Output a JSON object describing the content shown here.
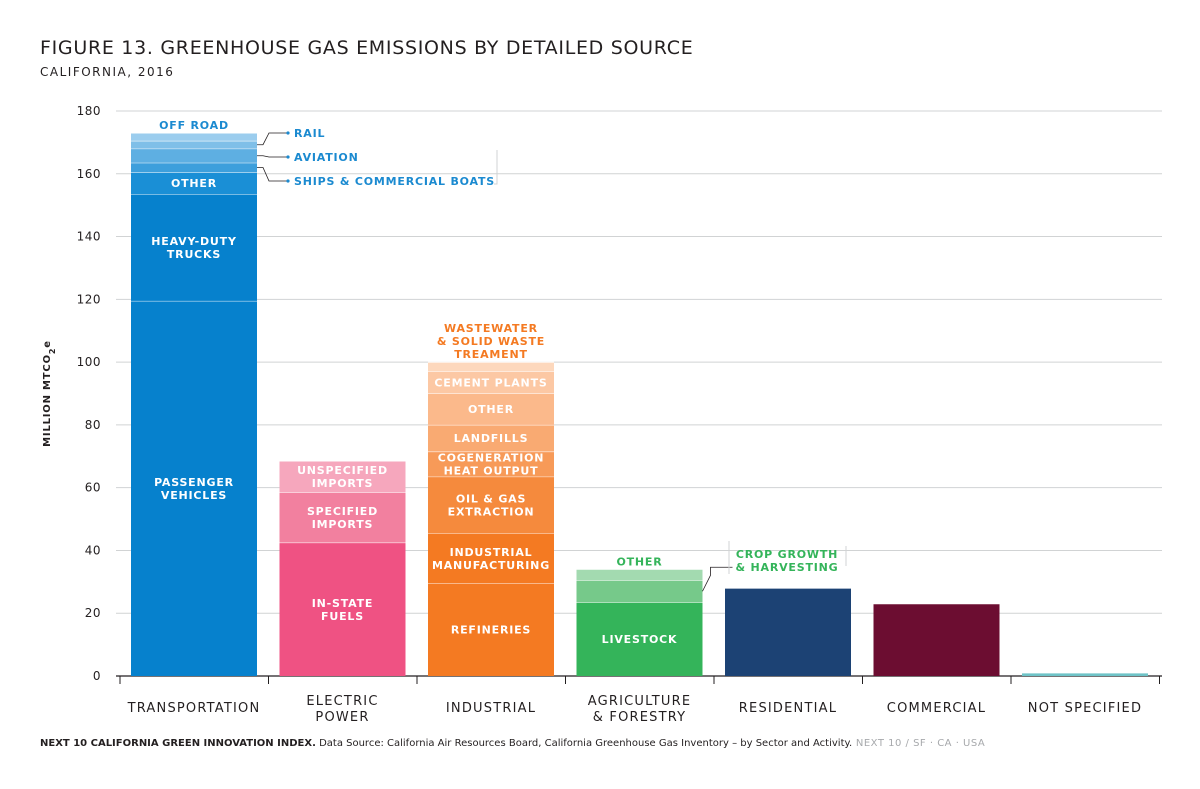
{
  "header": {
    "title": "FIGURE 13. GREENHOUSE GAS EMISSIONS BY DETAILED SOURCE",
    "subtitle": "CALIFORNIA, 2016"
  },
  "footer": {
    "bold": "NEXT 10 CALIFORNIA GREEN INNOVATION INDEX.",
    "source": " Data Source: California Air Resources Board, California Greenhouse Gas Inventory – by Sector and Activity.",
    "brand": " NEXT 10 / SF · CA · USA"
  },
  "chart_data": {
    "type": "bar",
    "stacked": true,
    "ylabel": "MILLION MTCO2e",
    "ylim": [
      0,
      180
    ],
    "yticks": [
      0,
      20,
      40,
      60,
      80,
      100,
      120,
      140,
      160,
      180
    ],
    "grid": true,
    "categories": [
      {
        "label": [
          "TRANSPORTATION"
        ],
        "total": 173
      },
      {
        "label": [
          "ELECTRIC",
          "POWER"
        ],
        "total": 68.5
      },
      {
        "label": [
          "INDUSTRIAL"
        ],
        "total": 100
      },
      {
        "label": [
          "AGRICULTURE",
          "& FORESTRY"
        ],
        "total": 34
      },
      {
        "label": [
          "RESIDENTIAL"
        ],
        "total": 28
      },
      {
        "label": [
          "COMMERCIAL"
        ],
        "total": 23
      },
      {
        "label": [
          "NOT SPECIFIED"
        ],
        "total": 1
      }
    ],
    "segments": [
      {
        "category": 0,
        "from": 0,
        "to": 119.5,
        "color": "#0681cd",
        "label": [
          "PASSENGER",
          "VEHICLES"
        ],
        "label_color": "#ffffff"
      },
      {
        "category": 0,
        "from": 119.5,
        "to": 153.5,
        "color": "#0681cd",
        "label": [
          "HEAVY-DUTY",
          "TRUCKS"
        ],
        "label_color": "#ffffff"
      },
      {
        "category": 0,
        "from": 153.5,
        "to": 160.5,
        "color": "#1a8fd6",
        "label": [
          "OTHER"
        ],
        "label_color": "#ffffff"
      },
      {
        "category": 0,
        "from": 160.5,
        "to": 163.5,
        "color": "#3d9fdc",
        "label": [],
        "callout": "SHIPS & COMMERCIAL BOATS"
      },
      {
        "category": 0,
        "from": 163.5,
        "to": 168,
        "color": "#5eafe2",
        "label": [],
        "callout": "AVIATION"
      },
      {
        "category": 0,
        "from": 168,
        "to": 170.5,
        "color": "#7fbfe8",
        "label": [],
        "callout": "RAIL"
      },
      {
        "category": 0,
        "from": 170.5,
        "to": 173,
        "color": "#9bcdee",
        "label": [
          "OFF ROAD"
        ],
        "label_color": "#1b8ad0",
        "label_above": true
      },
      {
        "category": 1,
        "from": 0,
        "to": 42.5,
        "color": "#ef5283",
        "label": [
          "IN-STATE",
          "FUELS"
        ],
        "label_color": "#ffffff"
      },
      {
        "category": 1,
        "from": 42.5,
        "to": 58.5,
        "color": "#f2809f",
        "label": [
          "SPECIFIED",
          "IMPORTS"
        ],
        "label_color": "#ffffff"
      },
      {
        "category": 1,
        "from": 58.5,
        "to": 68.5,
        "color": "#f6a7bd",
        "label": [
          "UNSPECIFIED",
          "IMPORTS"
        ],
        "label_color": "#ffffff"
      },
      {
        "category": 2,
        "from": 0,
        "to": 29.5,
        "color": "#f47a22",
        "label": [
          "REFINERIES"
        ],
        "label_color": "#ffffff"
      },
      {
        "category": 2,
        "from": 29.5,
        "to": 45.5,
        "color": "#f47a22",
        "label": [
          "INDUSTRIAL",
          "MANUFACTURING"
        ],
        "label_color": "#ffffff"
      },
      {
        "category": 2,
        "from": 45.5,
        "to": 63.5,
        "color": "#f58a3d",
        "label": [
          "OIL & GAS",
          "EXTRACTION"
        ],
        "label_color": "#ffffff"
      },
      {
        "category": 2,
        "from": 63.5,
        "to": 71.5,
        "color": "#f79a58",
        "label": [
          "COGENERATION",
          "HEAT OUTPUT"
        ],
        "label_color": "#ffffff"
      },
      {
        "category": 2,
        "from": 71.5,
        "to": 80,
        "color": "#f9aa72",
        "label": [
          "LANDFILLS"
        ],
        "label_color": "#ffffff"
      },
      {
        "category": 2,
        "from": 80,
        "to": 90,
        "color": "#fbb98b",
        "label": [
          "OTHER"
        ],
        "label_color": "#ffffff"
      },
      {
        "category": 2,
        "from": 90,
        "to": 97,
        "color": "#fcc8a4",
        "label": [
          "CEMENT PLANTS"
        ],
        "label_color": "#ffffff"
      },
      {
        "category": 2,
        "from": 97,
        "to": 100,
        "color": "#fdd8bd",
        "label": [
          "WASTEWATER",
          "& SOLID WASTE",
          "TREAMENT"
        ],
        "label_color": "#f47a22",
        "label_above": true
      },
      {
        "category": 3,
        "from": 0,
        "to": 23.5,
        "color": "#34b45a",
        "label": [
          "LIVESTOCK"
        ],
        "label_color": "#ffffff"
      },
      {
        "category": 3,
        "from": 23.5,
        "to": 30.5,
        "color": "#76c98a",
        "label": [],
        "callout": "CROP GROWTH\n& HARVESTING"
      },
      {
        "category": 3,
        "from": 30.5,
        "to": 34,
        "color": "#a3dab0",
        "label": [
          "OTHER"
        ],
        "label_color": "#34b45a",
        "label_above": true
      },
      {
        "category": 4,
        "from": 0,
        "to": 28,
        "color": "#1c4274",
        "label": []
      },
      {
        "category": 5,
        "from": 0,
        "to": 23,
        "color": "#6c0d31",
        "label": []
      },
      {
        "category": 6,
        "from": 0,
        "to": 1,
        "color": "#6fc3c7",
        "label": []
      }
    ],
    "callout_colors": {
      "transportation": "#1b8ad0",
      "agriculture": "#34b45a"
    }
  }
}
